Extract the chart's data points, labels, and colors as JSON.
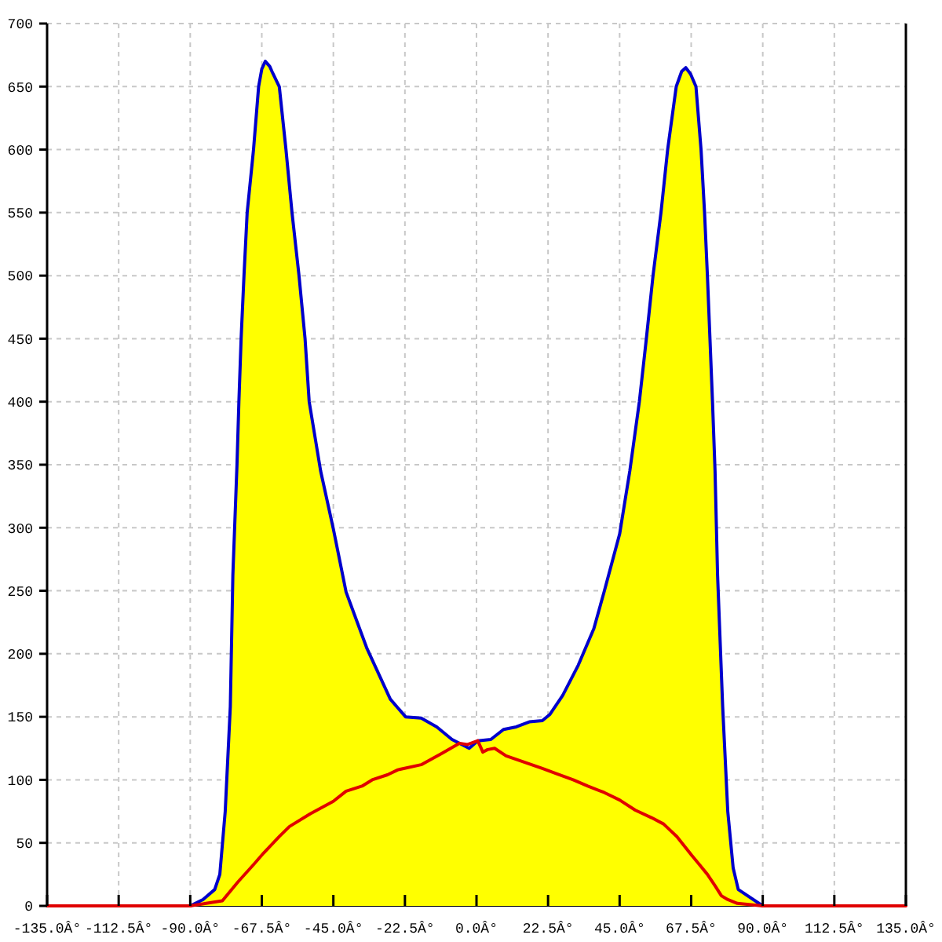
{
  "chart_data": {
    "type": "area",
    "xlim": [
      -135,
      135
    ],
    "xticks": [
      {
        "value": -135,
        "label": "-135.0Â°"
      },
      {
        "value": -112.5,
        "label": "-112.5Â°"
      },
      {
        "value": -90,
        "label": "-90.0Â°"
      },
      {
        "value": -67.5,
        "label": "-67.5Â°"
      },
      {
        "value": -45,
        "label": "-45.0Â°"
      },
      {
        "value": -22.5,
        "label": "-22.5Â°"
      },
      {
        "value": 0,
        "label": "0.0Â°"
      },
      {
        "value": 22.5,
        "label": "22.5Â°"
      },
      {
        "value": 45,
        "label": "45.0Â°"
      },
      {
        "value": 67.5,
        "label": "67.5Â°"
      },
      {
        "value": 90,
        "label": "90.0Â°"
      },
      {
        "value": 112.5,
        "label": "112.5Â°"
      },
      {
        "value": 135,
        "label": "135.0Â°"
      }
    ],
    "ylim": [
      0,
      700
    ],
    "yticks": [
      0,
      50,
      100,
      150,
      200,
      250,
      300,
      350,
      400,
      450,
      500,
      550,
      600,
      650,
      700
    ],
    "grid": true,
    "series": [
      {
        "color": "#ffff00",
        "x": [
          -135,
          -90,
          -86,
          -82.3,
          -80.7,
          -79,
          -77.4,
          -76.6,
          -75.3,
          -74.7,
          -74,
          -73.1,
          -72.1,
          -70.1,
          -68.5,
          -67.5,
          -66.4,
          -65,
          -64.3,
          -62,
          -59.9,
          -58,
          -55.8,
          -53.9,
          -52.6,
          -49,
          -45,
          -41,
          -34.4,
          -27.1,
          -22.3,
          -17.4,
          -12.5,
          -7.7,
          -2.3,
          0.4,
          4.5,
          8.5,
          12.5,
          16.6,
          20.7,
          23.1,
          27.1,
          32,
          36.9,
          40.1,
          45,
          48.2,
          51.2,
          53.4,
          55.5,
          58,
          60.1,
          62.8,
          64.5,
          65.8,
          67.3,
          69,
          70.6,
          71.7,
          72.6,
          73.4,
          74.2,
          75,
          75.8,
          77.4,
          79,
          80.7,
          82.3,
          90,
          135
        ],
        "values": [
          0,
          0,
          5,
          13,
          25,
          75,
          158,
          262,
          350,
          400,
          450,
          500,
          550,
          600,
          650,
          664,
          670,
          666,
          662,
          650,
          600,
          550,
          500,
          450,
          400,
          345,
          299,
          249,
          204,
          164,
          150,
          149,
          142,
          132,
          125,
          131,
          132,
          140,
          142,
          146,
          147,
          152,
          167,
          191,
          220,
          249,
          295,
          345,
          400,
          450,
          500,
          550,
          600,
          650,
          662,
          665,
          660,
          650,
          600,
          550,
          500,
          450,
          400,
          345,
          262,
          158,
          75,
          30,
          13,
          0,
          0
        ]
      },
      {
        "type": "line",
        "color": "#0000cc",
        "x": [
          -90,
          -86,
          -82.3,
          -80.7,
          -79,
          -77.4,
          -76.6,
          -75.3,
          -74.7,
          -74,
          -73.1,
          -72.1,
          -70.1,
          -68.5,
          -67.5,
          -66.4,
          -65,
          -64.3,
          -62,
          -59.9,
          -58,
          -55.8,
          -53.9,
          -52.6,
          -49,
          -45,
          -41,
          -34.4,
          -27.1,
          -22.3,
          -17.4,
          -12.5,
          -7.7,
          -2.3,
          0.4,
          4.5,
          8.5,
          12.5,
          16.6,
          20.7,
          23.1,
          27.1,
          32,
          36.9,
          40.1,
          45,
          48.2,
          51.2,
          53.4,
          55.5,
          58,
          60.1,
          62.8,
          64.5,
          65.8,
          67.3,
          69,
          70.6,
          71.7,
          72.6,
          73.4,
          74.2,
          75,
          75.8,
          77.4,
          79,
          80.7,
          82.3,
          90
        ],
        "values": [
          0,
          5,
          13,
          25,
          75,
          158,
          262,
          350,
          400,
          450,
          500,
          550,
          600,
          650,
          664,
          670,
          666,
          662,
          650,
          600,
          550,
          500,
          450,
          400,
          345,
          299,
          249,
          204,
          164,
          150,
          149,
          142,
          132,
          125,
          131,
          132,
          140,
          142,
          146,
          147,
          152,
          167,
          191,
          220,
          249,
          295,
          345,
          400,
          450,
          500,
          550,
          600,
          650,
          662,
          665,
          660,
          650,
          600,
          550,
          500,
          450,
          400,
          345,
          262,
          158,
          75,
          30,
          13,
          0
        ]
      },
      {
        "type": "line",
        "color": "#e00000",
        "x": [
          -135,
          -90,
          -85,
          -79.9,
          -75,
          -70,
          -66.9,
          -62,
          -58.8,
          -52.3,
          -45,
          -41,
          -36,
          -32.8,
          -28,
          -24.7,
          -17.4,
          -10.9,
          -5.3,
          -2.8,
          0.4,
          2,
          3.5,
          5.7,
          9.3,
          15,
          20.7,
          25,
          30.4,
          35,
          40.1,
          45,
          49.9,
          55,
          58.8,
          63,
          67.7,
          70,
          72.6,
          75,
          77,
          79,
          82,
          90,
          135
        ],
        "values": [
          0,
          0,
          2,
          4,
          19,
          33,
          42,
          55,
          63,
          73,
          83,
          91,
          95,
          100,
          104,
          108,
          112,
          121,
          129,
          128,
          131,
          122,
          124,
          125,
          119,
          114,
          109,
          105,
          100,
          95,
          90,
          84,
          76,
          70,
          65,
          55,
          40,
          33,
          25,
          16,
          8,
          5,
          2,
          0,
          0
        ]
      }
    ]
  }
}
